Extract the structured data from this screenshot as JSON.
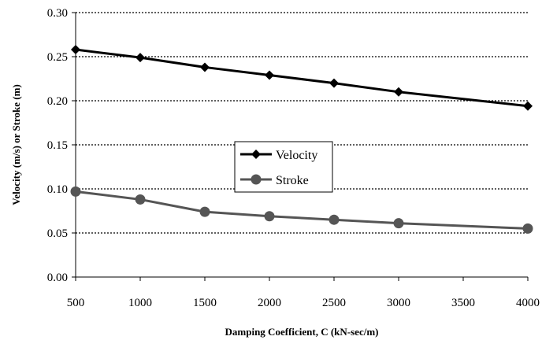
{
  "chart_data": {
    "type": "line",
    "x": [
      500,
      1000,
      1500,
      2000,
      2500,
      3000,
      4000
    ],
    "series": [
      {
        "name": "Velocity",
        "values": [
          0.258,
          0.249,
          0.238,
          0.229,
          0.22,
          0.21,
          0.194
        ],
        "color": "#000000",
        "marker": "diamond"
      },
      {
        "name": "Stroke",
        "values": [
          0.097,
          0.088,
          0.074,
          0.069,
          0.065,
          0.061,
          0.055
        ],
        "color": "#555555",
        "marker": "circle"
      }
    ],
    "xlabel": "Damping Coefficient, C (kN-sec/m)",
    "ylabel": "Velocity (m/s) or Stroke (m)",
    "xlim": [
      500,
      4000
    ],
    "ylim": [
      0,
      0.3
    ],
    "x_ticks": [
      "500",
      "1000",
      "1500",
      "2000",
      "2500",
      "3000",
      "3500",
      "4000"
    ],
    "y_ticks": [
      "0.00",
      "0.05",
      "0.10",
      "0.15",
      "0.20",
      "0.25",
      "0.30"
    ],
    "grid": "horizontal dotted",
    "legend_position": "center"
  }
}
